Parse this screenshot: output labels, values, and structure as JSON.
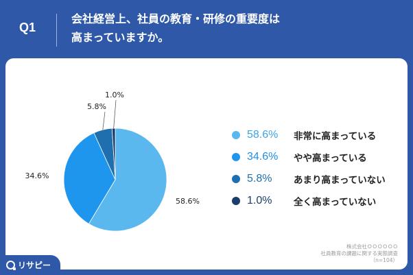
{
  "header": {
    "question": "Q1",
    "title_line1": "会社経営上、社員の教育・研修の重要度は",
    "title_line2": "高まっていますか。"
  },
  "chart_data": {
    "type": "pie",
    "categories": [
      "非常に高まっている",
      "やや高まっている",
      "あまり高まっていない",
      "全く高まっていない"
    ],
    "values": [
      58.6,
      34.6,
      5.8,
      1.0
    ],
    "data_labels": [
      "58.6%",
      "34.6%",
      "5.8%",
      "1.0%"
    ],
    "colors": [
      "#5bb8ee",
      "#1e96ee",
      "#1f6fae",
      "#1a3e69"
    ],
    "legend_position": "right",
    "start_angle": "top",
    "direction": "clockwise"
  },
  "legend": [
    {
      "pct": "58.6%",
      "label": "非常に高まっている",
      "color": "#5bb8ee",
      "pct_color": "#3aa4e6"
    },
    {
      "pct": "34.6%",
      "label": "やや高まっている",
      "color": "#1e96ee",
      "pct_color": "#1e8ee6"
    },
    {
      "pct": "5.8%",
      "label": "あまり高まっていない",
      "color": "#1f6fae",
      "pct_color": "#1f6fae"
    },
    {
      "pct": "1.0%",
      "label": "全く高まっていない",
      "color": "#1a3e69",
      "pct_color": "#1a3e69"
    }
  ],
  "source": {
    "line1": "株式会社ＯＯＯＯＯＯ",
    "line2": "社員教育の課題に関する実態調査",
    "line3": "（n=104）"
  },
  "logo": {
    "text": "リサピー",
    "icon": "search-icon"
  }
}
